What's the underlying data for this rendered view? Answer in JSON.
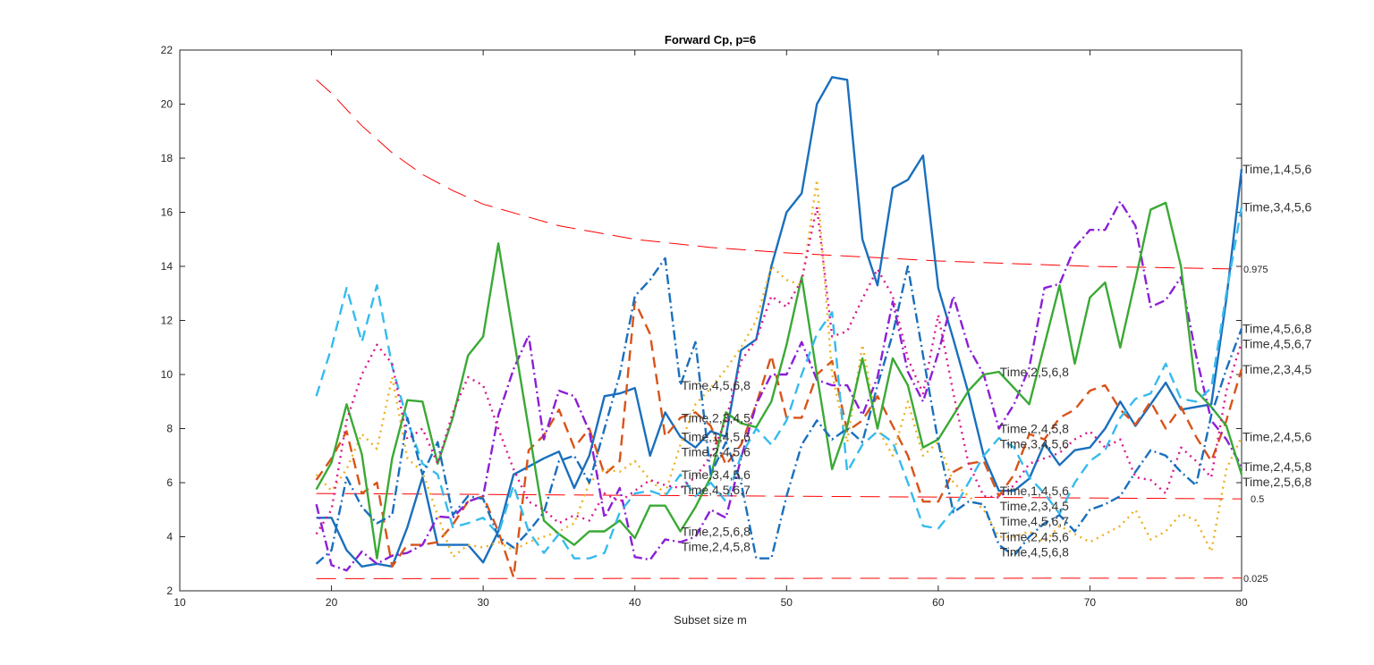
{
  "chart_data": {
    "type": "line",
    "title": "Forward Cp, p=6",
    "xlabel": "Subset size m",
    "ylabel": "",
    "xlim": [
      10,
      80
    ],
    "ylim": [
      2,
      22
    ],
    "xticks": [
      10,
      20,
      30,
      40,
      50,
      60,
      70,
      80
    ],
    "yticks": [
      2,
      4,
      6,
      8,
      10,
      12,
      14,
      16,
      18,
      20,
      22
    ],
    "grid": false,
    "x_start": 19,
    "x_end": 80,
    "series": [
      {
        "name": "Time,1,4,5,6",
        "color": "#1a6fbd",
        "style": "solid",
        "values": [
          4.7,
          4.7,
          3.5,
          2.9,
          3.0,
          2.9,
          4.35,
          6.2,
          3.7,
          3.7,
          3.7,
          3.05,
          4.2,
          6.3,
          6.6,
          6.9,
          7.15,
          5.8,
          7.0,
          9.2,
          9.3,
          9.5,
          7.0,
          8.6,
          7.7,
          7.3,
          7.9,
          7.7,
          10.9,
          11.3,
          14.0,
          16.0,
          16.7,
          20.0,
          21.0,
          20.9,
          15.0,
          13.3,
          16.9,
          17.2,
          18.1,
          13.2,
          11.3,
          9.3,
          7.0,
          5.7,
          5.7,
          6.15,
          7.45,
          6.65,
          7.2,
          7.3,
          8.0,
          9.0,
          8.1,
          8.9,
          9.7,
          8.7,
          8.8,
          8.9,
          12.8,
          17.6
        ]
      },
      {
        "name": "Time,2,3,4,5",
        "color": "#d95319",
        "style": "dashed",
        "values": [
          6.1,
          6.9,
          7.9,
          5.6,
          6.0,
          2.9,
          3.7,
          3.7,
          3.8,
          4.45,
          5.3,
          5.5,
          4.2,
          2.5,
          7.2,
          7.75,
          8.7,
          7.3,
          8.0,
          6.3,
          6.8,
          12.7,
          11.5,
          7.7,
          8.4,
          8.6,
          8.1,
          6.65,
          7.4,
          8.9,
          10.7,
          8.4,
          8.4,
          10.0,
          10.5,
          7.9,
          8.3,
          9.2,
          8.1,
          7.0,
          5.3,
          5.3,
          6.4,
          6.7,
          6.8,
          5.5,
          6.3,
          7.8,
          7.6,
          8.4,
          8.7,
          9.4,
          9.6,
          8.7,
          8.15,
          9.0,
          8.0,
          8.8,
          7.7,
          6.8,
          8.3,
          10.2
        ]
      },
      {
        "name": "Time,2,4,5,6",
        "color": "#edb120",
        "style": "dotted",
        "values": [
          6.3,
          5.7,
          6.5,
          7.8,
          7.25,
          9.9,
          6.9,
          6.4,
          4.8,
          3.25,
          3.7,
          3.6,
          3.8,
          3.5,
          3.8,
          4.0,
          4.2,
          4.5,
          6.0,
          6.5,
          6.4,
          6.8,
          6.1,
          5.6,
          7.4,
          8.9,
          9.5,
          10.2,
          11.0,
          12.0,
          14.0,
          13.5,
          13.3,
          17.2,
          10.0,
          7.5,
          11.1,
          8.0,
          7.0,
          9.0,
          7.0,
          7.5,
          6.0,
          5.5,
          5.0,
          4.0,
          4.0,
          4.2,
          3.8,
          4.4,
          4.1,
          3.8,
          4.1,
          4.4,
          5.0,
          3.9,
          4.2,
          4.85,
          4.6,
          3.45,
          6.5,
          7.7
        ]
      },
      {
        "name": "Time,2,4,5,8",
        "color": "#8b1fd6",
        "style": "dashdot",
        "values": [
          5.2,
          2.95,
          2.75,
          3.45,
          3.0,
          3.3,
          3.4,
          3.7,
          4.75,
          4.7,
          5.3,
          5.5,
          8.5,
          10.2,
          11.45,
          7.6,
          9.4,
          9.2,
          7.9,
          4.7,
          5.8,
          3.25,
          3.15,
          3.9,
          3.8,
          4.0,
          5.0,
          4.7,
          6.9,
          8.9,
          10.0,
          10.0,
          11.2,
          9.8,
          9.6,
          9.6,
          8.5,
          9.9,
          12.7,
          10.1,
          9.0,
          10.8,
          12.9,
          11.0,
          10.0,
          8.0,
          8.9,
          10.25,
          13.2,
          13.35,
          14.7,
          15.35,
          15.35,
          16.4,
          15.5,
          12.5,
          12.75,
          13.6,
          10.7,
          8.3,
          7.6,
          6.6
        ]
      },
      {
        "name": "Time,2,5,6,8",
        "color": "#3aa935",
        "style": "solid",
        "values": [
          5.75,
          6.75,
          8.9,
          7.05,
          3.2,
          6.9,
          9.05,
          9.0,
          6.7,
          8.4,
          10.7,
          11.4,
          14.85,
          11.4,
          8.0,
          4.6,
          4.1,
          3.7,
          4.2,
          4.2,
          4.6,
          3.95,
          5.15,
          5.15,
          4.2,
          5.1,
          6.2,
          8.6,
          8.2,
          8.05,
          9.0,
          11.1,
          13.6,
          10.0,
          6.5,
          8.1,
          10.6,
          8.0,
          10.6,
          9.6,
          7.3,
          7.6,
          8.5,
          9.4,
          10.0,
          10.1,
          9.5,
          8.9,
          11.1,
          13.3,
          10.4,
          12.85,
          13.4,
          11.0,
          13.5,
          16.1,
          16.35,
          14.0,
          9.4,
          8.8,
          8.1,
          6.3
        ]
      },
      {
        "name": "Time,3,4,5,6",
        "color": "#35bbee",
        "style": "dashed",
        "values": [
          9.2,
          11.0,
          13.2,
          11.2,
          13.3,
          10.3,
          8.3,
          6.7,
          6.3,
          4.35,
          4.5,
          4.7,
          4.1,
          5.9,
          4.2,
          3.4,
          4.1,
          3.2,
          3.2,
          3.4,
          4.9,
          5.6,
          5.7,
          5.5,
          6.3,
          5.5,
          6.0,
          5.3,
          7.0,
          8.0,
          7.4,
          8.3,
          10.0,
          11.5,
          12.3,
          6.4,
          7.4,
          7.9,
          7.5,
          6.0,
          4.4,
          4.3,
          5.0,
          6.0,
          7.0,
          7.65,
          7.3,
          6.2,
          5.6,
          4.85,
          6.0,
          6.8,
          7.2,
          8.4,
          9.1,
          9.3,
          10.4,
          9.1,
          9.0,
          9.5,
          13.0,
          16.2
        ]
      },
      {
        "name": "Time,4,5,6,7",
        "color": "#dc148c",
        "style": "dotted",
        "values": [
          4.1,
          5.0,
          8.3,
          10.0,
          11.1,
          10.4,
          7.6,
          8.0,
          6.7,
          8.6,
          9.9,
          9.6,
          8.0,
          6.5,
          5.3,
          5.0,
          4.5,
          4.8,
          4.6,
          5.6,
          5.3,
          5.7,
          6.1,
          5.9,
          5.8,
          6.2,
          7.0,
          8.3,
          10.5,
          11.3,
          12.9,
          12.5,
          13.5,
          16.2,
          11.4,
          11.6,
          12.8,
          13.9,
          12.9,
          10.6,
          9.3,
          12.2,
          9.3,
          6.7,
          5.5,
          5.45,
          5.9,
          6.7,
          6.9,
          7.1,
          7.6,
          7.9,
          7.3,
          7.6,
          6.2,
          6.1,
          5.6,
          7.3,
          6.8,
          6.2,
          9.4,
          11.2
        ]
      },
      {
        "name": "Time,4,5,6,8",
        "color": "#1a6fbd",
        "style": "dashdot",
        "values": [
          3.0,
          3.5,
          6.2,
          5.1,
          4.5,
          4.8,
          8.4,
          6.3,
          7.5,
          4.8,
          5.5,
          5.4,
          4.0,
          3.6,
          4.2,
          4.9,
          6.8,
          7.0,
          6.0,
          8.0,
          10.0,
          12.9,
          13.5,
          14.3,
          9.6,
          11.2,
          6.3,
          7.5,
          6.0,
          3.2,
          3.2,
          5.5,
          7.4,
          8.3,
          7.6,
          8.0,
          7.5,
          9.6,
          11.5,
          14.0,
          10.7,
          7.5,
          4.9,
          5.3,
          5.2,
          3.7,
          3.3,
          4.0,
          4.5,
          4.8,
          4.2,
          5.0,
          5.2,
          5.5,
          6.4,
          7.2,
          7.0,
          6.4,
          5.9,
          8.5,
          10.2,
          11.7
        ]
      }
    ],
    "series_label_positions_m": [
      43,
      64,
      80
    ],
    "bands": [
      {
        "name": "0.975",
        "color": "#ff0000",
        "style": "dashed",
        "m": [
          19,
          20,
          22,
          24,
          26,
          28,
          30,
          35,
          40,
          45,
          50,
          55,
          60,
          65,
          70,
          75,
          80
        ],
        "values": [
          20.9,
          20.4,
          19.2,
          18.2,
          17.4,
          16.8,
          16.3,
          15.5,
          15.0,
          14.7,
          14.5,
          14.35,
          14.2,
          14.1,
          14.0,
          13.95,
          13.9
        ]
      },
      {
        "name": "0.5",
        "color": "#ff0000",
        "style": "dashed",
        "m": [
          19,
          80
        ],
        "values": [
          5.6,
          5.4
        ]
      },
      {
        "name": "0.025",
        "color": "#ff0000",
        "style": "dashed",
        "m": [
          19,
          80
        ],
        "values": [
          2.45,
          2.47
        ]
      }
    ]
  }
}
